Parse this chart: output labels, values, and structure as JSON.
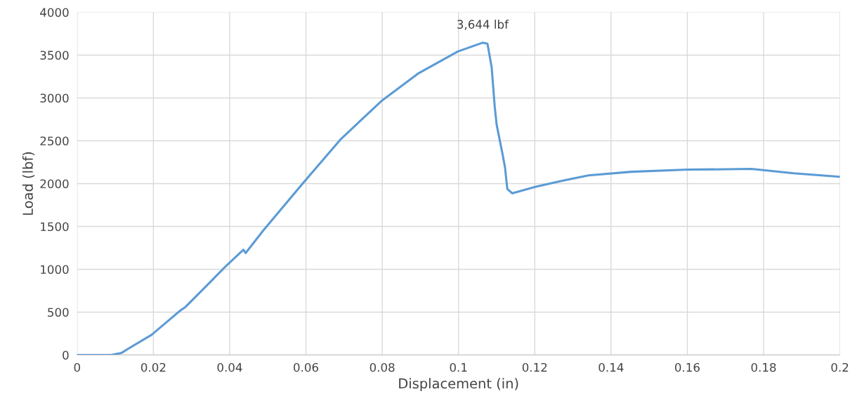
{
  "chart_data": {
    "type": "line",
    "xlabel": "Displacement (in)",
    "ylabel": "Load (lbf)",
    "xlim": [
      0,
      0.2
    ],
    "xticks": [
      0,
      0.02,
      0.04,
      0.06,
      0.08,
      0.1,
      0.12,
      0.14,
      0.16,
      0.18,
      0.2
    ],
    "ylim": [
      0,
      4000
    ],
    "yticks": [
      0,
      500,
      1000,
      1500,
      2000,
      2500,
      3000,
      3500,
      4000
    ],
    "grid": true,
    "legend": false,
    "marker": "none",
    "line_style": "solid",
    "annotations": [
      {
        "text": "3,644 lbf",
        "x": 0.1063,
        "y": 3644
      }
    ],
    "series": [
      {
        "color": "#5b9bd5",
        "x": [
          0,
          0.0089,
          0.0117,
          0.0135,
          0.0195,
          0.0237,
          0.0271,
          0.0284,
          0.034,
          0.0386,
          0.0436,
          0.0442,
          0.0488,
          0.0592,
          0.0692,
          0.0798,
          0.0896,
          0.0998,
          0.1063,
          0.1076,
          0.1087,
          0.1095,
          0.11,
          0.1115,
          0.1122,
          0.1128,
          0.1141,
          0.1202,
          0.1267,
          0.1341,
          0.1453,
          0.1601,
          0.1768,
          0.1879,
          0.2
        ],
        "values": [
          0,
          0,
          25,
          75,
          234,
          392,
          520,
          560,
          810,
          1019,
          1228,
          1190,
          1453,
          2004,
          2522,
          2964,
          3290,
          3541,
          3644,
          3632,
          3357,
          2898,
          2689,
          2355,
          2188,
          1937,
          1887,
          1962,
          2029,
          2096,
          2138,
          2163,
          2171,
          2121,
          2079
        ]
      }
    ]
  }
}
